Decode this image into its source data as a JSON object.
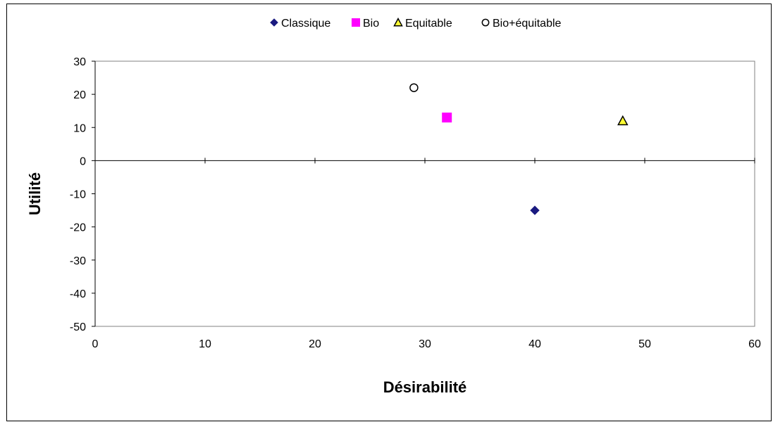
{
  "chart_data": {
    "type": "scatter",
    "title": "",
    "xlabel": "Désirabilité",
    "ylabel": "Utilité",
    "xlim": [
      0,
      60
    ],
    "ylim": [
      -50,
      30
    ],
    "xticks": [
      0,
      10,
      20,
      30,
      40,
      50,
      60
    ],
    "yticks": [
      30,
      20,
      10,
      0,
      -10,
      -20,
      -30,
      -40,
      -50
    ],
    "grid": false,
    "legend_position": "top-center",
    "series": [
      {
        "name": "Classique",
        "marker": "diamond",
        "fill": "#1a1a80",
        "stroke": "#1a1a80",
        "points": [
          {
            "x": 40,
            "y": -15
          }
        ]
      },
      {
        "name": "Bio",
        "marker": "square",
        "fill": "#ff00ff",
        "stroke": "#ff00ff",
        "points": [
          {
            "x": 32,
            "y": 13
          }
        ]
      },
      {
        "name": "Equitable",
        "marker": "triangle",
        "fill": "#ffff33",
        "stroke": "#000000",
        "points": [
          {
            "x": 48,
            "y": 12
          }
        ]
      },
      {
        "name": "Bio+équitable",
        "marker": "circle",
        "fill": "#ffffff",
        "stroke": "#000000",
        "points": [
          {
            "x": 29,
            "y": 22
          }
        ]
      }
    ]
  }
}
